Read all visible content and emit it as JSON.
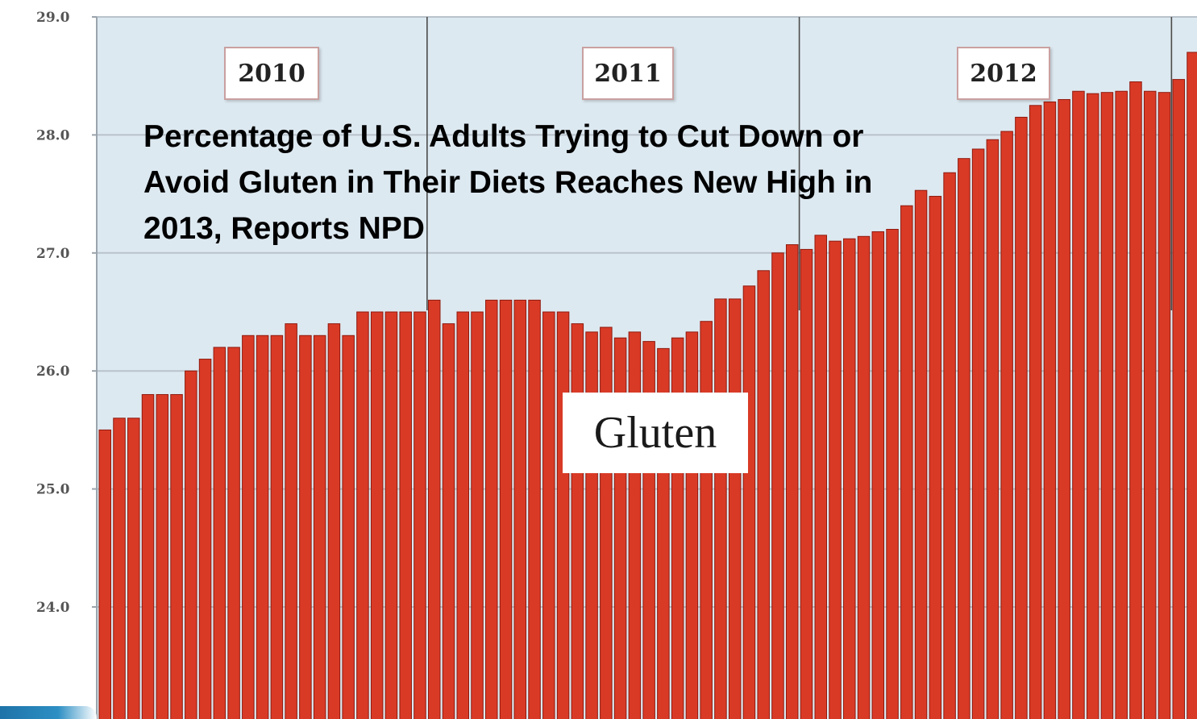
{
  "headline": "Percentage of U.S. Adults Trying to Cut Down or Avoid Gluten in Their Diets Reaches New High in 2013, Reports NPD",
  "colors": {
    "bar": "#d93a26",
    "bar_edge": "#8e1a0e",
    "plot_bg": "#dde9f1",
    "gridline": "#b8c2ca",
    "year_divider": "#4a4a4a"
  },
  "chart_data": {
    "type": "bar",
    "series_label": "Gluten",
    "period_labels": [
      "2010",
      "2011",
      "2012"
    ],
    "yticks": [
      "24.0",
      "25.0",
      "26.0",
      "27.0",
      "28.0",
      "29.0"
    ],
    "ylim": [
      23.1,
      29.0
    ],
    "grid": true,
    "values": [
      25.5,
      25.6,
      25.6,
      25.8,
      25.8,
      25.8,
      26.0,
      26.1,
      26.2,
      26.2,
      26.3,
      26.3,
      26.3,
      26.4,
      26.3,
      26.3,
      26.4,
      26.3,
      26.5,
      26.5,
      26.5,
      26.5,
      26.5,
      26.6,
      26.4,
      26.5,
      26.5,
      26.6,
      26.6,
      26.6,
      26.6,
      26.5,
      26.5,
      26.4,
      26.33,
      26.37,
      26.28,
      26.33,
      26.25,
      26.19,
      26.28,
      26.33,
      26.42,
      26.61,
      26.61,
      26.72,
      26.85,
      27.0,
      27.07,
      27.03,
      27.15,
      27.1,
      27.12,
      27.14,
      27.18,
      27.2,
      27.4,
      27.53,
      27.48,
      27.68,
      27.8,
      27.88,
      27.96,
      28.03,
      28.15,
      28.25,
      28.28,
      28.3,
      28.37,
      28.35,
      28.36,
      28.37,
      28.45,
      28.37,
      28.36,
      28.47,
      28.7
    ]
  }
}
